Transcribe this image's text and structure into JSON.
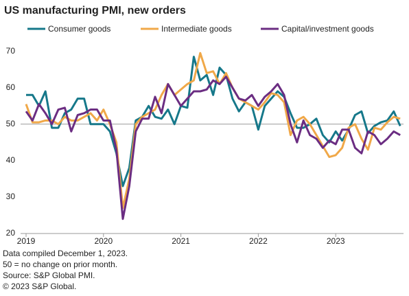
{
  "chart_data": {
    "type": "line",
    "title": "US manufacturing PMI, new orders",
    "categories": [
      "2019",
      null,
      null,
      null,
      null,
      null,
      null,
      null,
      null,
      null,
      null,
      null,
      "2020",
      null,
      null,
      null,
      null,
      null,
      null,
      null,
      null,
      null,
      null,
      null,
      "2021",
      null,
      null,
      null,
      null,
      null,
      null,
      null,
      null,
      null,
      null,
      null,
      "2022",
      null,
      null,
      null,
      null,
      null,
      null,
      null,
      null,
      null,
      null,
      null,
      "2023",
      null,
      null,
      null,
      null,
      null,
      null,
      null,
      null,
      null,
      null
    ],
    "series": [
      {
        "name": "Consumer goods",
        "color": "#16788a",
        "values": [
          58,
          58,
          55,
          59,
          49,
          49,
          53,
          54,
          57,
          57,
          50,
          50,
          50,
          48,
          42,
          33,
          38,
          51,
          52,
          55,
          52,
          51.5,
          54,
          50,
          55,
          54.5,
          68.5,
          62,
          63.5,
          58,
          65.5,
          63.5,
          57,
          53.5,
          56,
          55,
          48.5,
          55,
          57,
          59,
          57.5,
          53,
          49,
          49,
          50,
          51.5,
          47,
          45,
          48,
          45.5,
          48.5,
          52.5,
          53.5,
          47.5,
          49.5,
          50.5,
          51,
          53.5,
          49.5
        ]
      },
      {
        "name": "Intermediate goods",
        "color": "#f0a848",
        "values": [
          55.5,
          50.5,
          50.5,
          51,
          51,
          50,
          52,
          51,
          51,
          52,
          53,
          51,
          54,
          50,
          45,
          27,
          35,
          50,
          52,
          53,
          54,
          58,
          61,
          58,
          59.5,
          61,
          62,
          69.5,
          64,
          64.5,
          61,
          64,
          60,
          57,
          56,
          55,
          54,
          56,
          58.5,
          58,
          56,
          47,
          51,
          52,
          50,
          47,
          44,
          41,
          41.5,
          43.5,
          49,
          50,
          46,
          43,
          49,
          48.5,
          50.5,
          52,
          51.5
        ]
      },
      {
        "name": "Capital/investment goods",
        "color": "#6b2d82",
        "values": [
          53.5,
          51,
          55.5,
          53,
          50,
          54,
          54.5,
          48,
          52.5,
          53,
          54,
          54,
          51,
          51,
          43,
          24,
          33,
          48,
          51.5,
          51.5,
          57.5,
          53,
          61,
          58,
          55,
          57,
          59,
          59,
          59.5,
          62,
          61,
          63,
          60,
          57,
          56.5,
          58,
          55,
          57.5,
          59,
          61,
          58,
          50,
          45,
          51,
          47,
          46,
          43.5,
          45.5,
          44.5,
          48.5,
          48.5,
          43.5,
          42,
          48,
          47,
          44.5,
          46,
          48,
          47
        ]
      }
    ],
    "ylim": [
      20,
      72
    ],
    "yticks": [
      20,
      30,
      40,
      50,
      60,
      70
    ],
    "reference_line": 50,
    "notes": [
      "Data compiled December 1, 2023.",
      "50 = no change on prior month.",
      "Source: S&P Global PMI.",
      "© 2023 S&P Global."
    ]
  }
}
